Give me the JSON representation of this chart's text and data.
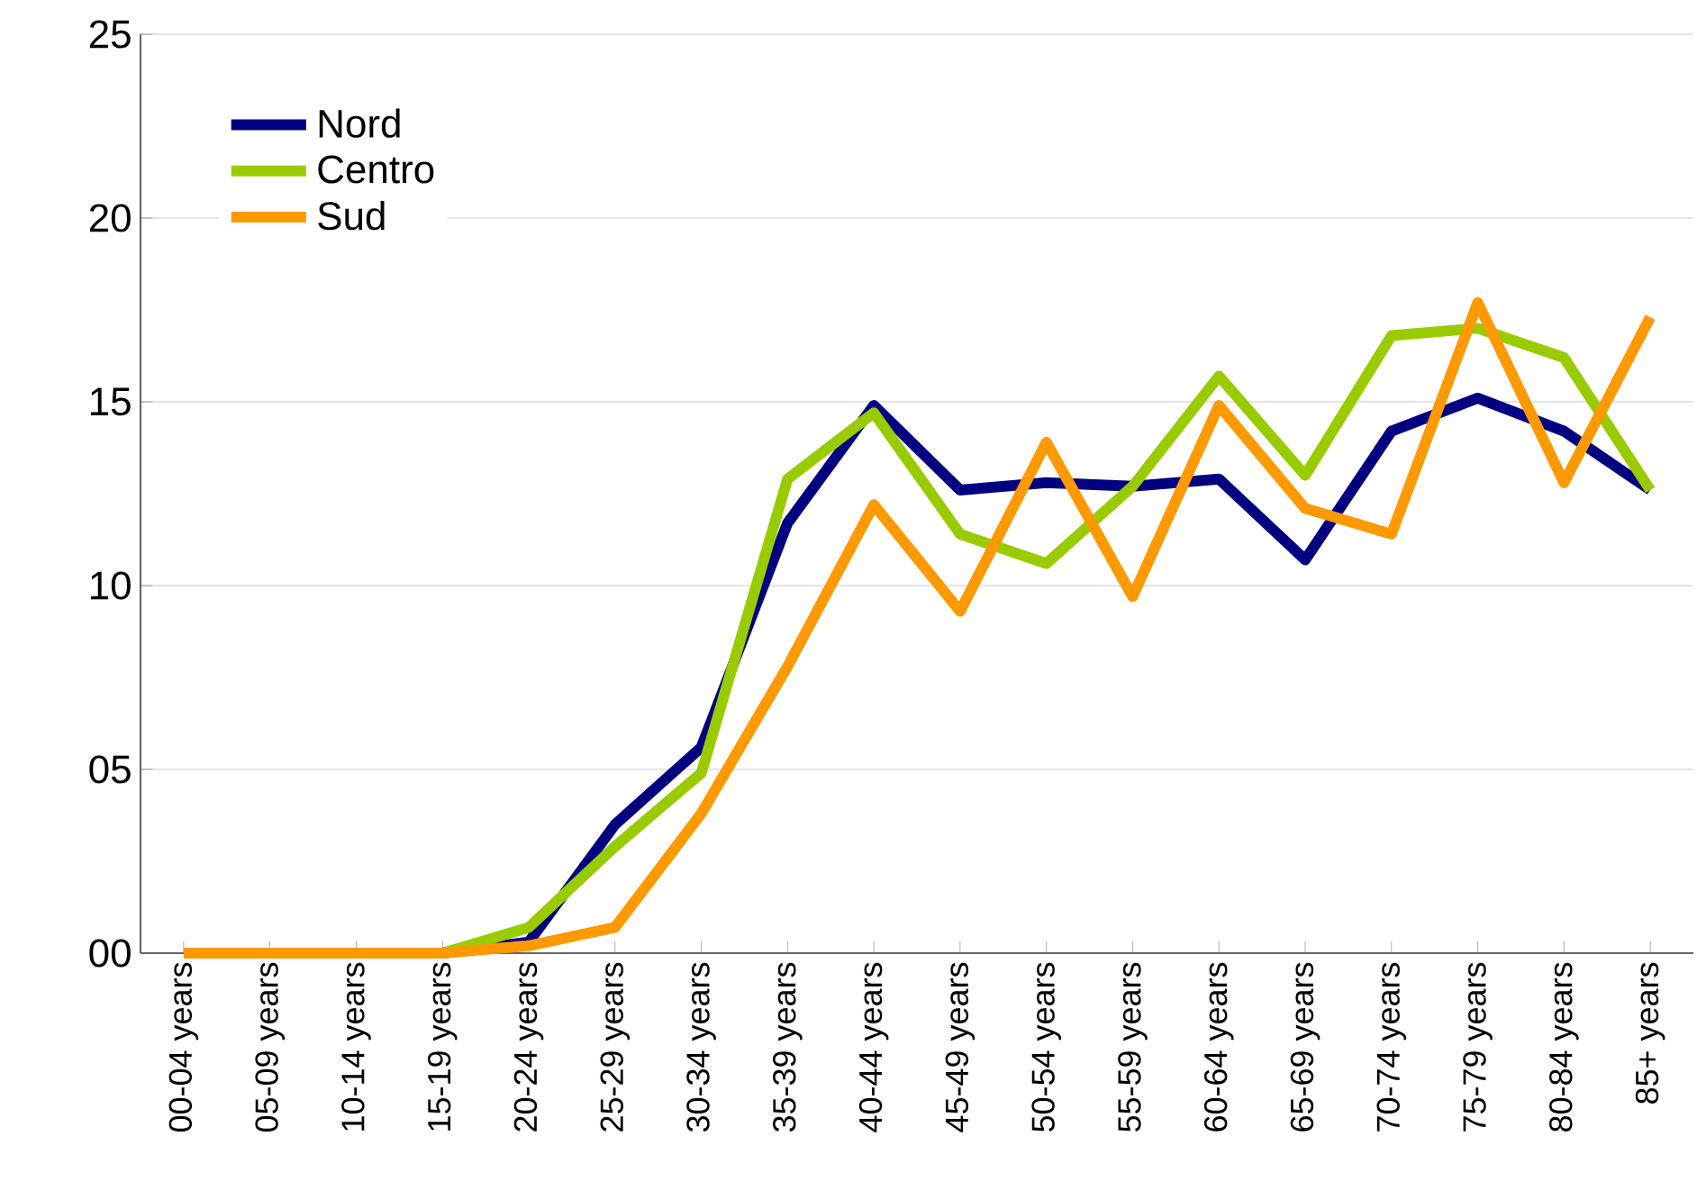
{
  "chart_data": {
    "type": "line",
    "categories": [
      "00-04 years",
      "05-09 years",
      "10-14 years",
      "15-19 years",
      "20-24 years",
      "25-29 years",
      "30-34 years",
      "35-39 years",
      "40-44 years",
      "45-49 years",
      "50-54 years",
      "55-59 years",
      "60-64 years",
      "65-69 years",
      "70-74 years",
      "75-79 years",
      "80-84 years",
      "85+ years"
    ],
    "series": [
      {
        "name": "Nord",
        "color": "#000080",
        "values": [
          null,
          null,
          null,
          0,
          0.3,
          3.5,
          5.6,
          11.7,
          14.9,
          12.6,
          12.8,
          12.7,
          12.9,
          10.7,
          14.2,
          15.1,
          14.2,
          12.6
        ]
      },
      {
        "name": "Centro",
        "color": "#99cc00",
        "values": [
          null,
          null,
          null,
          0,
          0.7,
          2.9,
          4.9,
          12.9,
          14.7,
          11.4,
          10.6,
          12.7,
          15.7,
          13.0,
          16.8,
          17.0,
          16.2,
          12.6
        ]
      },
      {
        "name": "Sud",
        "color": "#ff9900",
        "values": [
          0,
          0,
          0,
          0,
          0.2,
          0.7,
          3.8,
          7.8,
          12.2,
          9.3,
          13.9,
          9.7,
          14.9,
          12.1,
          11.4,
          17.7,
          12.8,
          17.3
        ]
      }
    ],
    "ylim": [
      0,
      25
    ],
    "yticks": [
      {
        "value": 0,
        "label": "00"
      },
      {
        "value": 5,
        "label": "05"
      },
      {
        "value": 10,
        "label": "10"
      },
      {
        "value": 15,
        "label": "15"
      },
      {
        "value": 20,
        "label": "20"
      },
      {
        "value": 25,
        "label": "25"
      }
    ],
    "grid": "y",
    "legend": "top left",
    "marker": "none",
    "line_style": "solid"
  }
}
